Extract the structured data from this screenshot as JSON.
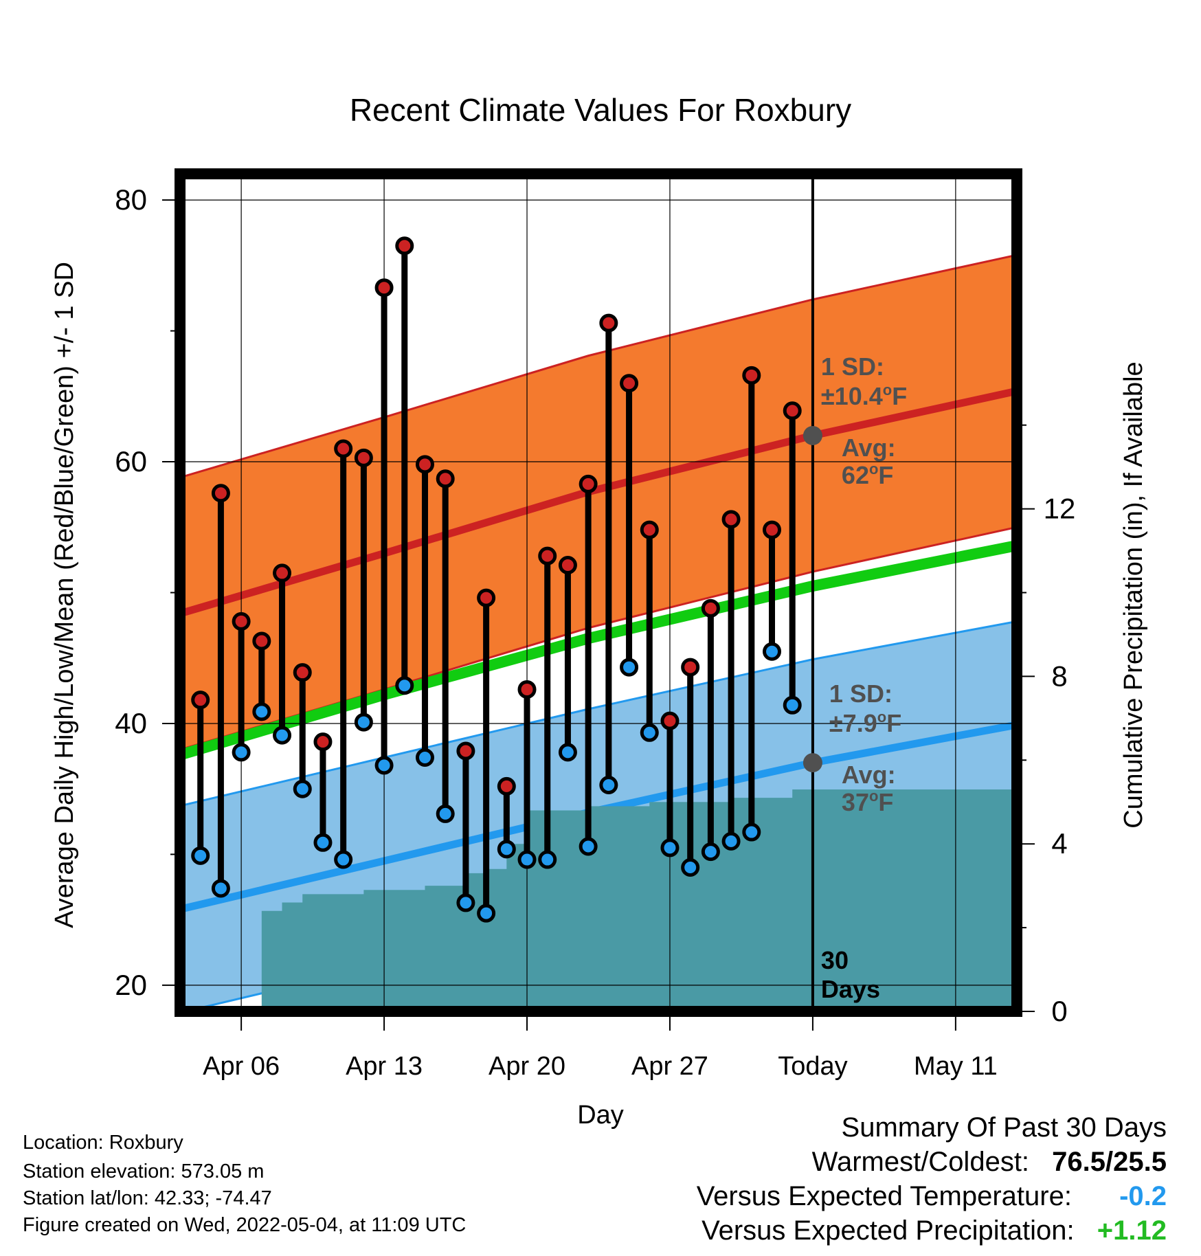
{
  "chart_data": {
    "type": "line",
    "title": "Recent Climate Values For Roxbury",
    "xlabel": "Day",
    "ylabel": "Average Daily High/Low/Mean (Red/Blue/Green) +/- 1 SD",
    "y2label": "Cumulative Precipitation (in), If Available",
    "x_tick_labels": [
      "Apr 06",
      "Apr 13",
      "Apr 20",
      "Apr 27",
      "Today",
      "May 11"
    ],
    "x_tick_dates": [
      "2022-04-06",
      "2022-04-13",
      "2022-04-20",
      "2022-04-27",
      "2022-05-04",
      "2022-05-11"
    ],
    "xlim": [
      "2022-04-03",
      "2022-05-14"
    ],
    "ylim": [
      18,
      82
    ],
    "y_ticks": [
      20,
      40,
      60,
      80
    ],
    "y2lim": [
      0,
      20
    ],
    "y2_ticks": [
      0,
      4,
      8,
      12
    ],
    "grid": true,
    "today": "2022-05-04",
    "window_label": "30 Days",
    "dates": [
      "2022-04-04",
      "2022-04-05",
      "2022-04-06",
      "2022-04-07",
      "2022-04-08",
      "2022-04-09",
      "2022-04-10",
      "2022-04-11",
      "2022-04-12",
      "2022-04-13",
      "2022-04-14",
      "2022-04-15",
      "2022-04-16",
      "2022-04-17",
      "2022-04-18",
      "2022-04-19",
      "2022-04-20",
      "2022-04-21",
      "2022-04-22",
      "2022-04-23",
      "2022-04-24",
      "2022-04-25",
      "2022-04-26",
      "2022-04-27",
      "2022-04-28",
      "2022-04-29",
      "2022-04-30",
      "2022-05-01",
      "2022-05-02",
      "2022-05-03"
    ],
    "series": [
      {
        "name": "High",
        "color": "#cc2222",
        "values": [
          41.8,
          57.6,
          47.8,
          46.3,
          51.5,
          43.9,
          38.6,
          61.0,
          60.3,
          73.3,
          76.5,
          59.8,
          58.7,
          37.9,
          49.6,
          35.2,
          42.6,
          52.8,
          52.1,
          58.3,
          70.6,
          66.0,
          54.8,
          40.2,
          44.3,
          48.8,
          55.6,
          66.6,
          54.8,
          63.9
        ]
      },
      {
        "name": "Low",
        "color": "#2299ee",
        "values": [
          29.9,
          27.4,
          37.8,
          40.9,
          39.1,
          35.0,
          30.9,
          29.6,
          40.1,
          36.8,
          42.9,
          37.4,
          33.1,
          26.3,
          25.5,
          30.4,
          29.6,
          29.6,
          37.8,
          30.6,
          35.3,
          44.3,
          39.3,
          30.5,
          29.0,
          30.2,
          31.0,
          31.7,
          45.5,
          41.4
        ]
      }
    ],
    "normal_high_band": {
      "color": "#f47a2e",
      "line_color": "#cc2222",
      "x": [
        "2022-04-03",
        "2022-04-13",
        "2022-04-23",
        "2022-05-04",
        "2022-05-14"
      ],
      "mean": [
        48.4,
        53.0,
        57.7,
        62.0,
        65.4
      ],
      "sd": 10.4
    },
    "normal_low_band": {
      "color": "#87c1e8",
      "line_color": "#2299ee",
      "x": [
        "2022-04-03",
        "2022-04-13",
        "2022-04-23",
        "2022-05-04",
        "2022-05-14"
      ],
      "mean": [
        25.8,
        29.5,
        33.2,
        37.0,
        39.9
      ],
      "sd": 7.9
    },
    "normal_mean_line": {
      "color": "#11cc11",
      "x": [
        "2022-04-03",
        "2022-04-13",
        "2022-04-23",
        "2022-05-04",
        "2022-05-14"
      ],
      "values": [
        37.6,
        42.2,
        46.5,
        50.5,
        53.6
      ]
    },
    "precipitation": {
      "color": "#4a9aa5",
      "dates": [
        "2022-04-04",
        "2022-04-05",
        "2022-04-06",
        "2022-04-07",
        "2022-04-08",
        "2022-04-09",
        "2022-04-10",
        "2022-04-11",
        "2022-04-12",
        "2022-04-13",
        "2022-04-14",
        "2022-04-15",
        "2022-04-16",
        "2022-04-17",
        "2022-04-18",
        "2022-04-19",
        "2022-04-20",
        "2022-04-21",
        "2022-04-22",
        "2022-04-23",
        "2022-04-24",
        "2022-04-25",
        "2022-04-26",
        "2022-04-27",
        "2022-04-28",
        "2022-04-29",
        "2022-04-30",
        "2022-05-01",
        "2022-05-02",
        "2022-05-03",
        "2022-05-04",
        "2022-05-14"
      ],
      "values": [
        0,
        0,
        0,
        2.4,
        2.6,
        2.8,
        2.8,
        2.8,
        2.9,
        2.9,
        2.9,
        3.0,
        3.0,
        3.3,
        3.4,
        4.0,
        4.8,
        4.8,
        4.8,
        4.9,
        4.9,
        4.9,
        5.0,
        5.0,
        5.0,
        5.0,
        5.1,
        5.1,
        5.1,
        5.3,
        5.3,
        5.3
      ]
    },
    "today_markers": {
      "high_avg_label": "Avg:",
      "high_avg_value": "62",
      "high_sd_label": "1 SD:",
      "high_sd_value": "±10.4",
      "low_avg_label": "Avg:",
      "low_avg_value": "37",
      "low_sd_label": "1 SD:",
      "low_sd_value": "±7.9",
      "unit": "F"
    }
  },
  "info": {
    "location": "Location: Roxbury",
    "elevation": "Station elevation: 573.05 m",
    "latlon": "Station lat/lon: 42.33; -74.47",
    "created": "Figure created on Wed, 2022-05-04, at 11:09 UTC"
  },
  "summary": {
    "heading": "Summary Of Past 30 Days",
    "warm_label": "Warmest/Coldest:",
    "warm_value": "76.5/25.5",
    "temp_label": "Versus Expected Temperature:",
    "temp_value": "-0.2",
    "temp_color": "#2299ee",
    "precip_label": "Versus Expected Precipitation:",
    "precip_value": "+1.12",
    "precip_color": "#22bb22"
  }
}
